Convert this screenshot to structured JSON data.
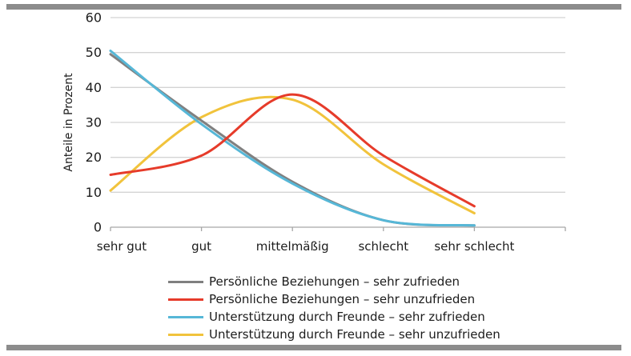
{
  "frame": {
    "bar_color": "#8c8c8c",
    "background": "#ffffff"
  },
  "colors": {
    "gridline": "#d4d4d4",
    "axis": "#a6a6a6",
    "text": "#1c1c1c"
  },
  "chart_data": {
    "type": "line",
    "line_style": "smooth",
    "title": "",
    "xlabel": "",
    "ylabel": "Anteile in Prozent",
    "ylim": [
      0,
      60
    ],
    "yticks": [
      0,
      10,
      20,
      30,
      40,
      50,
      60
    ],
    "grid": "horizontal",
    "legend_position": "bottom",
    "categories": [
      "sehr gut",
      "gut",
      "mittelmäßig",
      "schlecht",
      "sehr schlecht"
    ],
    "series": [
      {
        "name": "Persönliche Beziehungen – sehr zufrieden",
        "color": "#808080",
        "values": [
          49.5,
          30.5,
          13,
          2,
          0.5
        ]
      },
      {
        "name": "Persönliche Beziehungen – sehr unzufrieden",
        "color": "#e63b2a",
        "values": [
          15,
          20.5,
          38,
          20.5,
          6
        ]
      },
      {
        "name": "Unterstützung durch Freunde – sehr zufrieden",
        "color": "#56b7d7",
        "values": [
          50.5,
          29.5,
          12.5,
          2,
          0.5
        ]
      },
      {
        "name": "Unterstützung durch Freunde – sehr unzufrieden",
        "color": "#f1c33c",
        "values": [
          10.5,
          31.5,
          36.5,
          18,
          4
        ]
      }
    ],
    "draw_order": [
      3,
      0,
      2,
      1
    ]
  }
}
